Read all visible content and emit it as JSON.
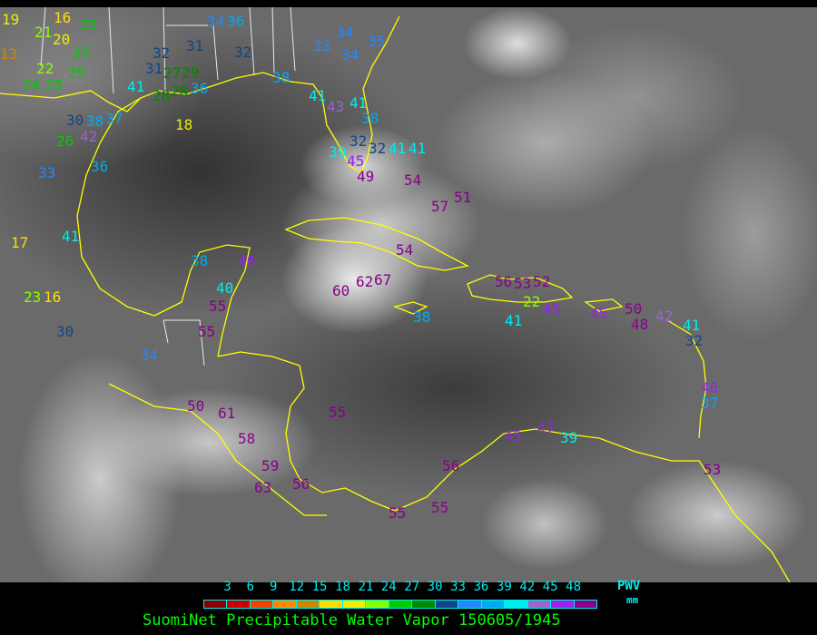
{
  "title": "SuomiNet Precipitable Water Vapor 150605/1945",
  "legend": {
    "unit_label": "PWV",
    "unit": "mm",
    "ticks": [
      "3",
      "6",
      "9",
      "12",
      "15",
      "18",
      "21",
      "24",
      "27",
      "30",
      "33",
      "36",
      "39",
      "42",
      "45",
      "48"
    ],
    "colors": [
      "#8b0000",
      "#cc0000",
      "#ee4400",
      "#ff8800",
      "#cc8800",
      "#ffdd00",
      "#eeee00",
      "#88ff00",
      "#00cc00",
      "#008800",
      "#114488",
      "#2288ff",
      "#00aaee",
      "#00eeee",
      "#9966cc",
      "#9922ee",
      "#880088"
    ]
  },
  "coastline_color": "#ffff00",
  "border_color": "#ffffff",
  "station_values": [
    19,
    20,
    21,
    16,
    25,
    22,
    24,
    25,
    25,
    25,
    13,
    17,
    23,
    16,
    30,
    18,
    33,
    41,
    36,
    42,
    26,
    38,
    30,
    37,
    41,
    31,
    32,
    31,
    28,
    27,
    29,
    28,
    36,
    34,
    36,
    32,
    33,
    34,
    35,
    34,
    38,
    41,
    43,
    41,
    38,
    32,
    32,
    39,
    45,
    49,
    41,
    41,
    54,
    57,
    51,
    54,
    38,
    46,
    40,
    55,
    55,
    34,
    60,
    62,
    67,
    38,
    56,
    53,
    52,
    22,
    41,
    45,
    45,
    50,
    48,
    42,
    41,
    32,
    46,
    37,
    50,
    61,
    58,
    59,
    63,
    56,
    55,
    45,
    47,
    39,
    56,
    55,
    55,
    53
  ]
}
